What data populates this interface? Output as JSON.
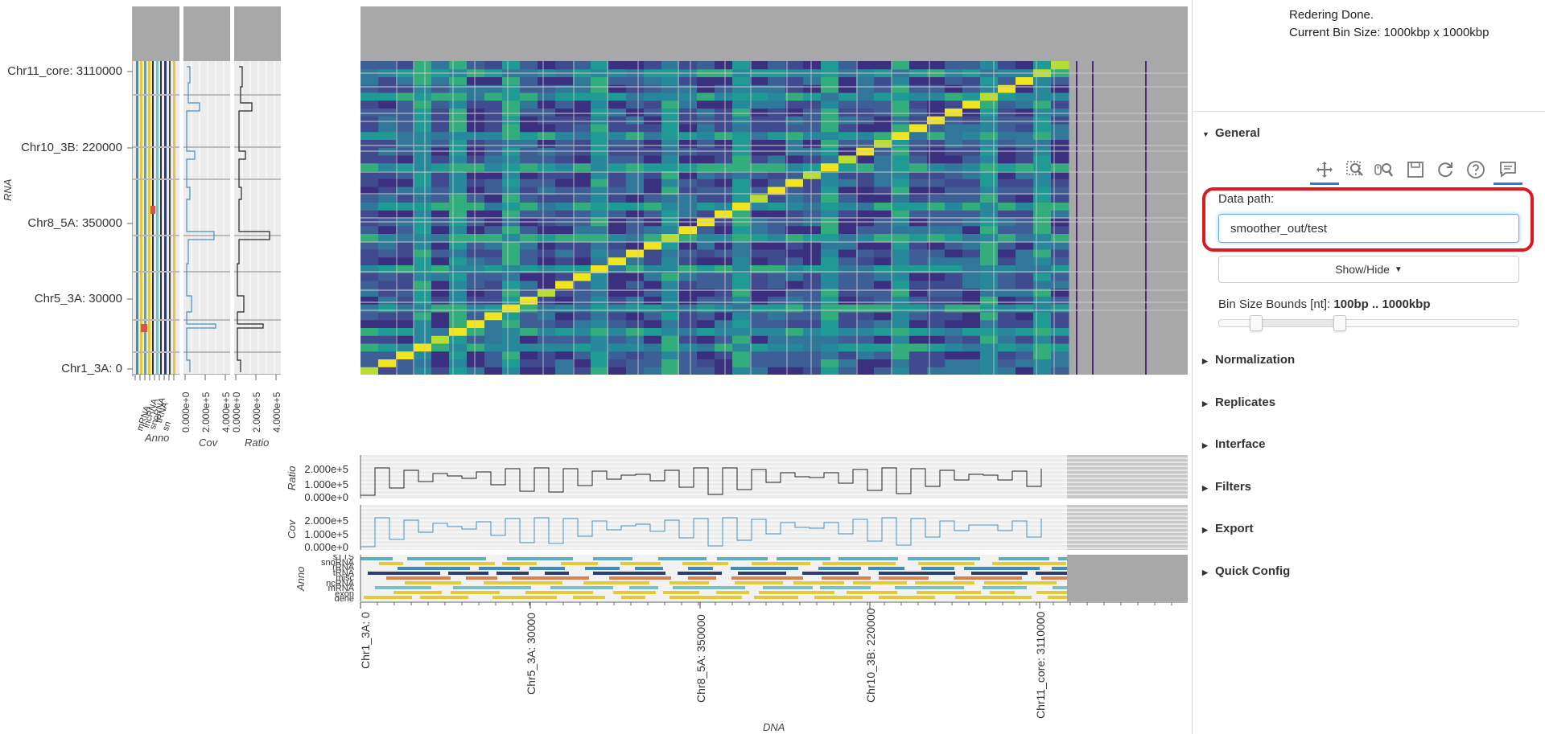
{
  "status": {
    "line1": "Redering Done.",
    "line2": "Current Bin Size: 1000kbp x 1000kbp"
  },
  "heatmap": {
    "y_title": "RNA",
    "x_title": "DNA",
    "y_ticks": [
      "Chr11_core: 3110000",
      "Chr10_3B: 220000",
      "Chr8_5A: 350000",
      "Chr5_3A: 30000",
      "Chr1_3A: 0"
    ],
    "x_ticks": [
      "Chr1_3A: 0",
      "Chr5_3A: 30000",
      "Chr8_5A: 350000",
      "Chr10_3B: 220000",
      "Chr11_core: 3110000"
    ]
  },
  "left_panels": {
    "anno_title": "Anno",
    "cov_title": "Cov",
    "ratio_title": "Ratio",
    "cov_ticks": [
      "0.000e+0",
      "2.000e+5",
      "4.000e+5"
    ],
    "ratio_ticks": [
      "0.000e+0",
      "2.000e+5",
      "4.000e+5"
    ],
    "anno_labels": [
      "mRNA",
      "lncRNA",
      "snoRNA",
      "tRNA",
      "sn",
      "rRNA",
      "misc",
      "cRNA",
      "other"
    ]
  },
  "bottom_panels": {
    "ratio_title": "Ratio",
    "cov_title": "Cov",
    "anno_title": "Anno",
    "ratio_ticks": [
      "2.000e+5",
      "1.000e+5",
      "0.000e+0"
    ],
    "cov_ticks": [
      "2.000e+5",
      "1.000e+5",
      "0.000e+0"
    ],
    "anno_labels": [
      "sTTS",
      "snoRNA",
      "rRNA",
      "tRNA",
      "misc",
      "ncRNA",
      "mRNA",
      "exon",
      "gene"
    ]
  },
  "sidebar": {
    "general_label": "General",
    "data_path_label": "Data path:",
    "data_path_value": "smoother_out/test",
    "show_hide_label": "Show/Hide",
    "bin_bounds_label": "Bin Size Bounds [nt]:",
    "bin_bounds_value": "100bp .. 1000kbp",
    "bin_slider_low": 0.12,
    "bin_slider_high": 0.4,
    "sections": [
      "Normalization",
      "Replicates",
      "Interface",
      "Filters",
      "Export",
      "Quick Config"
    ]
  },
  "toolbar": {
    "icons": [
      "pan-icon",
      "box-zoom-icon",
      "wheel-zoom-icon",
      "save-icon",
      "reset-icon",
      "help-icon",
      "comment-icon"
    ]
  },
  "colors": {
    "highlight": "#e0191f",
    "accent": "#2a7fd4",
    "panel_gray": "#a8a8a8"
  }
}
